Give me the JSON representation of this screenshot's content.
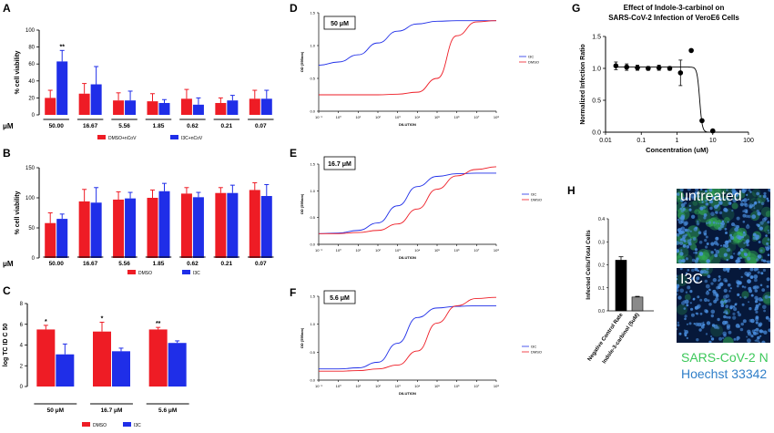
{
  "colors": {
    "red": "#ee1c25",
    "blue": "#1f2ee8",
    "darkred": "#a01010",
    "darkblue": "#101a90",
    "black": "#000000",
    "gray": "#8a8a8a",
    "fluor_green": "#3cc85a",
    "hoechst": "#2f7ec8"
  },
  "panels": {
    "A": {
      "letter": "A"
    },
    "B": {
      "letter": "B"
    },
    "C": {
      "letter": "C"
    },
    "D": {
      "letter": "D"
    },
    "E": {
      "letter": "E"
    },
    "F": {
      "letter": "F"
    },
    "G": {
      "letter": "G"
    },
    "H": {
      "letter": "H"
    }
  },
  "mu_label": "μM",
  "chart_data": [
    {
      "id": "A",
      "type": "bar",
      "categories": [
        "50.00",
        "16.67",
        "5.56",
        "1.85",
        "0.62",
        "0.21",
        "0.07"
      ],
      "ylabel": "% cell viability",
      "ylim": [
        0,
        100
      ],
      "yticks": [
        "0",
        "20",
        "40",
        "60",
        "80",
        "100"
      ],
      "series": [
        {
          "name": "DMSO+nCoV",
          "color": "red",
          "values": [
            20,
            25,
            17,
            16,
            19,
            14,
            19
          ],
          "errors": [
            9,
            12,
            9,
            9,
            11,
            6,
            10
          ]
        },
        {
          "name": "I3C+nCoV",
          "color": "blue",
          "values": [
            63,
            36,
            17,
            14,
            12,
            17,
            19
          ],
          "errors": [
            13,
            21,
            11,
            4,
            8,
            6,
            10
          ]
        }
      ],
      "annotations": [
        {
          "category": "50.00",
          "series": 1,
          "text": "**"
        }
      ]
    },
    {
      "id": "B",
      "type": "bar",
      "categories": [
        "50.00",
        "16.67",
        "5.56",
        "1.85",
        "0.62",
        "0.21",
        "0.07"
      ],
      "ylabel": "% cell viability",
      "ylim": [
        0,
        150
      ],
      "yticks": [
        "0",
        "50",
        "100",
        "150"
      ],
      "series": [
        {
          "name": "DMSO",
          "color": "red",
          "values": [
            58,
            94,
            97,
            100,
            107,
            108,
            113
          ],
          "errors": [
            17,
            20,
            13,
            13,
            10,
            9,
            12
          ]
        },
        {
          "name": "I3C",
          "color": "blue",
          "values": [
            65,
            92,
            99,
            111,
            101,
            108,
            103
          ],
          "errors": [
            8,
            25,
            10,
            13,
            8,
            13,
            19
          ]
        }
      ]
    },
    {
      "id": "C",
      "type": "bar",
      "categories": [
        "50 μM",
        "16.7 μM",
        "5.6 μM"
      ],
      "ylabel": "log TC ID C 50",
      "ylim": [
        0,
        8
      ],
      "yticks": [
        "0",
        "2",
        "4",
        "6",
        "8"
      ],
      "series": [
        {
          "name": "DMSO",
          "color": "red",
          "values": [
            5.5,
            5.3,
            5.5
          ],
          "errors": [
            0.4,
            0.9,
            0.2
          ]
        },
        {
          "name": "I3C",
          "color": "blue",
          "values": [
            3.1,
            3.4,
            4.2
          ],
          "errors": [
            1.0,
            0.3,
            0.2
          ]
        }
      ],
      "annotations": [
        {
          "category": "50 μM",
          "series": 0,
          "text": "*"
        },
        {
          "category": "16.7 μM",
          "series": 0,
          "text": "*"
        },
        {
          "category": "5.6 μM",
          "series": 0,
          "text": "**"
        }
      ]
    },
    {
      "id": "D",
      "type": "line",
      "box_label": "50 μM",
      "xlabel": "DILUTION",
      "ylabel": "OD (595nm)",
      "xtick_labels": [
        "10⁻¹",
        "10⁰",
        "10¹",
        "10²",
        "10³",
        "10⁴",
        "10⁵",
        "10⁶",
        "10⁷",
        "10⁸"
      ],
      "yticks": [
        "0.0",
        "0.5",
        "1.0",
        "1.5"
      ],
      "ylim": [
        0,
        1.5
      ],
      "series": [
        {
          "name": "I3C",
          "color": "blue",
          "x": [
            0,
            1,
            2,
            3,
            4,
            5,
            6,
            7,
            8,
            9
          ],
          "y": [
            0.7,
            0.75,
            0.86,
            1.04,
            1.22,
            1.33,
            1.37,
            1.38,
            1.38,
            1.38
          ]
        },
        {
          "name": "DMSO",
          "color": "red",
          "x": [
            0,
            1,
            2,
            3,
            4,
            5,
            6,
            7,
            8,
            9
          ],
          "y": [
            0.25,
            0.25,
            0.25,
            0.25,
            0.26,
            0.29,
            0.5,
            1.15,
            1.36,
            1.38
          ]
        }
      ]
    },
    {
      "id": "E",
      "type": "line",
      "box_label": "16.7 μM",
      "xlabel": "DILUTION",
      "ylabel": "OD (595nm)",
      "xtick_labels": [
        "10⁻¹",
        "10⁰",
        "10¹",
        "10²",
        "10³",
        "10⁴",
        "10⁵",
        "10⁶",
        "10⁷",
        "10⁸"
      ],
      "yticks": [
        "0.0",
        "0.5",
        "1.0",
        "1.5"
      ],
      "ylim": [
        0,
        1.5
      ],
      "series": [
        {
          "name": "I3C",
          "color": "blue",
          "x": [
            0,
            1,
            2,
            3,
            4,
            5,
            6,
            7,
            8,
            9
          ],
          "y": [
            0.2,
            0.21,
            0.26,
            0.4,
            0.72,
            1.08,
            1.27,
            1.32,
            1.33,
            1.33
          ]
        },
        {
          "name": "DMSO",
          "color": "red",
          "x": [
            0,
            1,
            2,
            3,
            4,
            5,
            6,
            7,
            8,
            9
          ],
          "y": [
            0.2,
            0.2,
            0.22,
            0.26,
            0.38,
            0.66,
            1.03,
            1.28,
            1.4,
            1.45
          ]
        }
      ]
    },
    {
      "id": "F",
      "type": "line",
      "box_label": "5.6 μM",
      "xlabel": "DILUTION",
      "ylabel": "OD (595nm)",
      "xtick_labels": [
        "10⁻¹",
        "10⁰",
        "10¹",
        "10²",
        "10³",
        "10⁴",
        "10⁵",
        "10⁶",
        "10⁷",
        "10⁸"
      ],
      "yticks": [
        "0.0",
        "0.5",
        "1.0",
        "1.5"
      ],
      "ylim": [
        0,
        1.5
      ],
      "series": [
        {
          "name": "I3C",
          "color": "blue",
          "x": [
            0,
            1,
            2,
            3,
            4,
            5,
            6,
            7,
            8,
            9
          ],
          "y": [
            0.2,
            0.2,
            0.22,
            0.32,
            0.66,
            1.12,
            1.29,
            1.32,
            1.33,
            1.33
          ]
        },
        {
          "name": "DMSO",
          "color": "red",
          "x": [
            0,
            1,
            2,
            3,
            4,
            5,
            6,
            7,
            8,
            9
          ],
          "y": [
            0.16,
            0.16,
            0.17,
            0.2,
            0.27,
            0.52,
            1.02,
            1.33,
            1.46,
            1.48
          ]
        }
      ]
    },
    {
      "id": "G",
      "type": "scatter",
      "title": "Effect of Indole-3-carbinol on",
      "subtitle": "SARS-CoV-2 Infection of VeroE6  Cells",
      "xlabel": "Concentration (uM)",
      "ylabel": "Normalized Infection Ratio",
      "xscale": "log",
      "xlim": [
        0.01,
        100
      ],
      "ylim": [
        0,
        1.5
      ],
      "xticks": [
        "0.01",
        "0.1",
        "1",
        "10",
        "100"
      ],
      "yticks": [
        "0.0",
        "0.5",
        "1.0",
        "1.5"
      ],
      "x": [
        0.0195,
        0.039,
        0.078,
        0.156,
        0.3125,
        0.625,
        1.25,
        2.5,
        5,
        10
      ],
      "y": [
        1.04,
        1.02,
        1.01,
        1.0,
        1.01,
        1.0,
        0.93,
        1.28,
        0.18,
        0.02
      ],
      "errors": [
        0.06,
        0.05,
        0.04,
        0.03,
        0.04,
        0.03,
        0.2,
        0,
        0.02,
        0
      ],
      "fit": {
        "top": 1.02,
        "bottom": 0.0,
        "ic50": 4.3,
        "hill": 12
      }
    },
    {
      "id": "H",
      "type": "bar",
      "ylabel": "Infected Cells/Total Cells",
      "ylim": [
        0,
        0.4
      ],
      "yticks": [
        "0.0",
        "0.1",
        "0.2",
        "0.3",
        "0.4"
      ],
      "categories": [
        "Negative Control Rate",
        "Indole-3-carbinol (5uM)"
      ],
      "values": [
        0.22,
        0.06
      ],
      "errors": [
        0.015,
        0.003
      ],
      "colors": [
        "black",
        "gray"
      ]
    }
  ],
  "images": {
    "untreated": "untreated",
    "i3c": "I3C"
  },
  "stain_legend": {
    "line1": "SARS-CoV-2 N",
    "line2": "Hoechst 33342"
  }
}
